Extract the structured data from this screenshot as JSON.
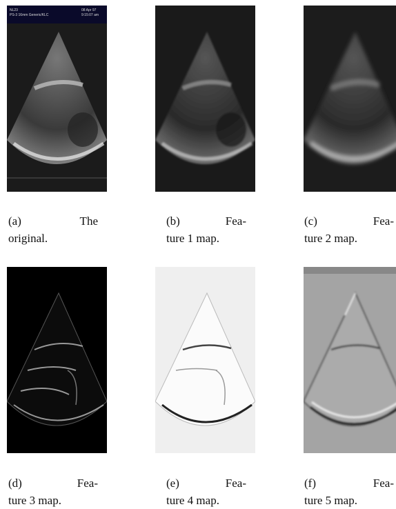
{
  "panels": [
    {
      "overlay": [
        "NL23",
        "PS-3 16mm Generic/KLC",
        "08 Apr 97",
        "9:15:07 am"
      ],
      "caption": [
        "(a) The",
        "original."
      ]
    },
    {
      "caption": [
        "(b) Fea-",
        "ture 1 map."
      ]
    },
    {
      "caption": [
        "(c) Fea-",
        "ture 2 map."
      ]
    },
    {
      "caption": [
        "(d) Fea-",
        "ture 3 map."
      ]
    },
    {
      "caption": [
        "(e) Fea-",
        "ture 4 map."
      ]
    },
    {
      "caption": [
        "(f) Fea-",
        "ture 5 map."
      ]
    }
  ]
}
